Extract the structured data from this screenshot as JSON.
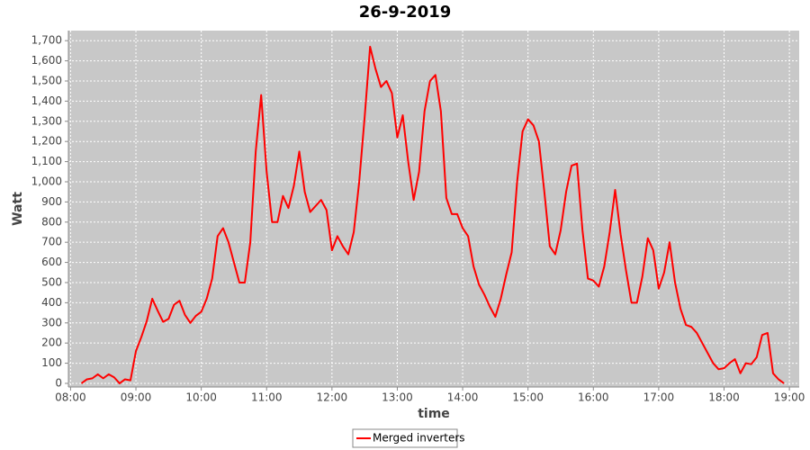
{
  "chart_data": {
    "type": "line",
    "title": "26-9-2019",
    "x_label": "time",
    "y_label": "Watt",
    "x": [
      490,
      495,
      500,
      505,
      510,
      515,
      520,
      525,
      530,
      535,
      540,
      545,
      550,
      555,
      560,
      565,
      570,
      575,
      580,
      585,
      590,
      595,
      600,
      605,
      610,
      615,
      620,
      625,
      630,
      635,
      640,
      645,
      650,
      655,
      660,
      665,
      670,
      675,
      680,
      685,
      690,
      695,
      700,
      705,
      710,
      715,
      720,
      725,
      730,
      735,
      740,
      745,
      750,
      755,
      760,
      765,
      770,
      775,
      780,
      785,
      790,
      795,
      800,
      805,
      810,
      815,
      820,
      825,
      830,
      835,
      840,
      845,
      850,
      855,
      860,
      865,
      870,
      875,
      880,
      885,
      890,
      895,
      900,
      905,
      910,
      915,
      920,
      925,
      930,
      935,
      940,
      945,
      950,
      955,
      960,
      965,
      970,
      975,
      980,
      985,
      990,
      995,
      1000,
      1005,
      1010,
      1015,
      1020,
      1025,
      1030,
      1035,
      1040,
      1045,
      1050,
      1055,
      1060,
      1065,
      1070,
      1075,
      1080,
      1085,
      1090,
      1095,
      1100,
      1105,
      1110,
      1115,
      1120,
      1125,
      1130,
      1135
    ],
    "series": [
      {
        "name": "Merged inverters",
        "color": "#ff0000",
        "values": [
          0,
          20,
          25,
          45,
          25,
          45,
          30,
          0,
          20,
          15,
          160,
          230,
          310,
          420,
          360,
          305,
          320,
          390,
          410,
          340,
          300,
          335,
          355,
          420,
          520,
          730,
          770,
          700,
          600,
          500,
          500,
          700,
          1150,
          1430,
          1050,
          800,
          800,
          930,
          870,
          980,
          1150,
          950,
          850,
          880,
          910,
          860,
          660,
          730,
          680,
          640,
          750,
          1000,
          1320,
          1670,
          1560,
          1470,
          1500,
          1440,
          1220,
          1330,
          1100,
          910,
          1050,
          1350,
          1500,
          1530,
          1350,
          920,
          840,
          840,
          770,
          730,
          580,
          490,
          440,
          380,
          330,
          420,
          540,
          650,
          1000,
          1250,
          1310,
          1280,
          1200,
          950,
          680,
          640,
          760,
          950,
          1080,
          1090,
          760,
          520,
          510,
          480,
          580,
          750,
          960,
          740,
          560,
          400,
          400,
          530,
          720,
          660,
          470,
          550,
          700,
          500,
          370,
          290,
          280,
          250,
          200,
          150,
          100,
          70,
          75,
          100,
          120,
          50,
          100,
          95,
          130,
          240,
          250,
          50,
          20,
          0
        ]
      }
    ],
    "xlim": [
      478,
      1149
    ],
    "xticks": [
      {
        "value": 480,
        "label": "08:00"
      },
      {
        "value": 540,
        "label": "09:00"
      },
      {
        "value": 600,
        "label": "10:00"
      },
      {
        "value": 660,
        "label": "11:00"
      },
      {
        "value": 720,
        "label": "12:00"
      },
      {
        "value": 780,
        "label": "13:00"
      },
      {
        "value": 840,
        "label": "14:00"
      },
      {
        "value": 900,
        "label": "15:00"
      },
      {
        "value": 960,
        "label": "16:00"
      },
      {
        "value": 1020,
        "label": "17:00"
      },
      {
        "value": 1080,
        "label": "18:00"
      },
      {
        "value": 1140,
        "label": "19:00"
      }
    ],
    "ylim": [
      -18,
      1750
    ],
    "yticks": [
      0,
      100,
      200,
      300,
      400,
      500,
      600,
      700,
      800,
      900,
      {
        "value": 1000,
        "label": "1,000"
      },
      {
        "value": 1100,
        "label": "1,100"
      },
      {
        "value": 1200,
        "label": "1,200"
      },
      {
        "value": 1300,
        "label": "1,300"
      },
      {
        "value": 1400,
        "label": "1,400"
      },
      {
        "value": 1500,
        "label": "1,500"
      },
      {
        "value": 1600,
        "label": "1,600"
      },
      {
        "value": 1700,
        "label": "1,700"
      }
    ],
    "grid": true,
    "legend": "bottom"
  }
}
